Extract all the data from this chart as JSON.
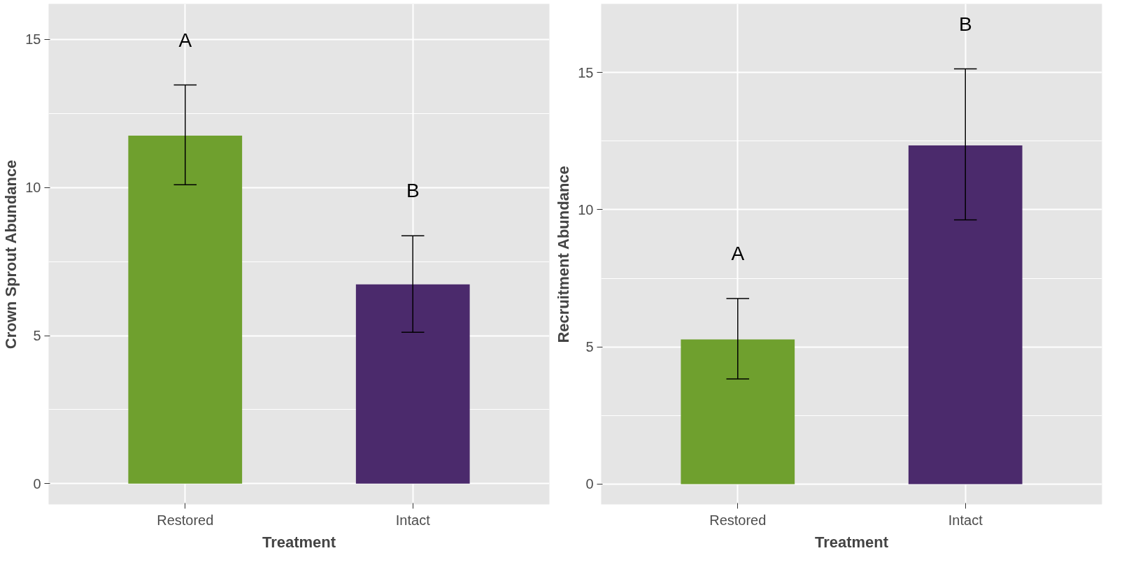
{
  "chart_data": [
    {
      "type": "bar",
      "categories": [
        "Restored",
        "Intact"
      ],
      "values": [
        11.75,
        6.73
      ],
      "colors": [
        "#6fa02e",
        "#4b2a6c"
      ],
      "errors": [
        [
          10.09,
          13.46
        ],
        [
          5.11,
          8.37
        ]
      ],
      "xlabel": "Treatment",
      "ylabel": "Crown Sprout Abundance",
      "ylim": [
        -0.7,
        16.2
      ],
      "yticks": [
        0,
        5,
        10,
        15
      ],
      "grid": true,
      "annotations": [
        "A",
        "B"
      ]
    },
    {
      "type": "bar",
      "categories": [
        "Restored",
        "Intact"
      ],
      "values": [
        5.27,
        12.34
      ],
      "colors": [
        "#6fa02e",
        "#4b2a6c"
      ],
      "errors": [
        [
          3.83,
          6.76
        ],
        [
          9.63,
          15.13
        ]
      ],
      "xlabel": "Treatment",
      "ylabel": "Recruitment Abundance",
      "ylim": [
        -0.74,
        17.5
      ],
      "yticks": [
        0,
        5,
        10,
        15
      ],
      "grid": true,
      "annotations": [
        "A",
        "B"
      ]
    }
  ]
}
